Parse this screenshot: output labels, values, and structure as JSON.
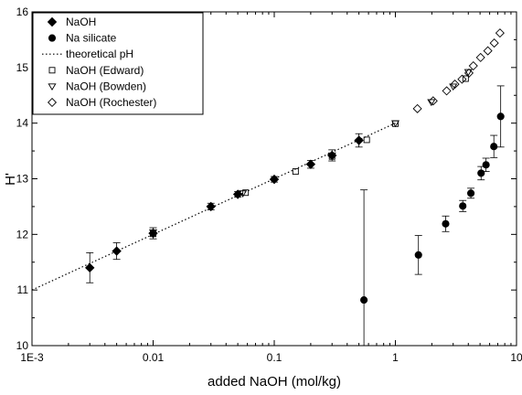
{
  "chart_data": {
    "type": "scatter",
    "xlabel": "added NaOH (mol/kg)",
    "ylabel": "H'",
    "x_scale": "log",
    "xlim": [
      0.001,
      10
    ],
    "ylim": [
      10,
      16
    ],
    "x_ticks": [
      0.001,
      0.01,
      0.1,
      1,
      10
    ],
    "x_tick_labels": [
      "1E-3",
      "0.01",
      "0.1",
      "1",
      "10"
    ],
    "y_ticks": [
      10,
      11,
      12,
      13,
      14,
      15,
      16
    ],
    "y_tick_labels": [
      "10",
      "11",
      "12",
      "13",
      "14",
      "15",
      "16"
    ],
    "grid": false,
    "legend_position": "top-left",
    "series": [
      {
        "name": "NaOH",
        "marker": "filled-diamond",
        "color": "#000000",
        "x": [
          0.003,
          0.005,
          0.01,
          0.03,
          0.05,
          0.1,
          0.2,
          0.3,
          0.5
        ],
        "y": [
          11.4,
          11.7,
          12.02,
          12.5,
          12.72,
          12.99,
          13.26,
          13.42,
          13.69
        ],
        "err": [
          0.27,
          0.15,
          0.1,
          0.06,
          0.05,
          0.05,
          0.07,
          0.1,
          0.12
        ]
      },
      {
        "name": "Na silicate",
        "marker": "filled-circle",
        "color": "#000000",
        "x": [
          0.55,
          1.55,
          2.6,
          3.6,
          4.2,
          5.1,
          5.6,
          6.5,
          7.4
        ],
        "y": [
          10.82,
          11.63,
          12.19,
          12.51,
          12.74,
          13.1,
          13.25,
          13.58,
          14.12
        ],
        "err_low": [
          0.82,
          0.35,
          0.14,
          0.1,
          0.09,
          0.12,
          0.12,
          0.2,
          0.55
        ],
        "err_high": [
          1.98,
          0.35,
          0.14,
          0.1,
          0.09,
          0.12,
          0.12,
          0.2,
          0.55
        ]
      },
      {
        "name": "theoretical pH",
        "marker": "dotted-line",
        "color": "#000000",
        "x": [
          0.001,
          1
        ],
        "y": [
          11.0,
          14.0
        ]
      },
      {
        "name": "NaOH (Edward)",
        "marker": "open-square",
        "color": "#000000",
        "x": [
          0.01,
          0.058,
          0.15,
          0.3,
          0.58,
          1.0,
          3.8
        ],
        "y": [
          12.01,
          12.75,
          13.13,
          13.4,
          13.7,
          13.99,
          14.8
        ]
      },
      {
        "name": "NaOH (Bowden)",
        "marker": "open-triangle-down",
        "color": "#000000",
        "x": [
          0.01,
          0.055,
          0.3,
          1.0,
          1.98,
          3.0,
          4.0
        ],
        "y": [
          12.04,
          12.74,
          13.42,
          14.0,
          14.38,
          14.66,
          14.92
        ]
      },
      {
        "name": "NaOH (Rochester)",
        "marker": "open-diamond",
        "color": "#000000",
        "x": [
          1.52,
          2.05,
          2.65,
          3.1,
          3.55,
          4.05,
          4.4,
          5.05,
          5.8,
          6.55,
          7.3
        ],
        "y": [
          14.26,
          14.4,
          14.58,
          14.7,
          14.79,
          14.9,
          15.03,
          15.18,
          15.3,
          15.44,
          15.62
        ]
      }
    ]
  }
}
